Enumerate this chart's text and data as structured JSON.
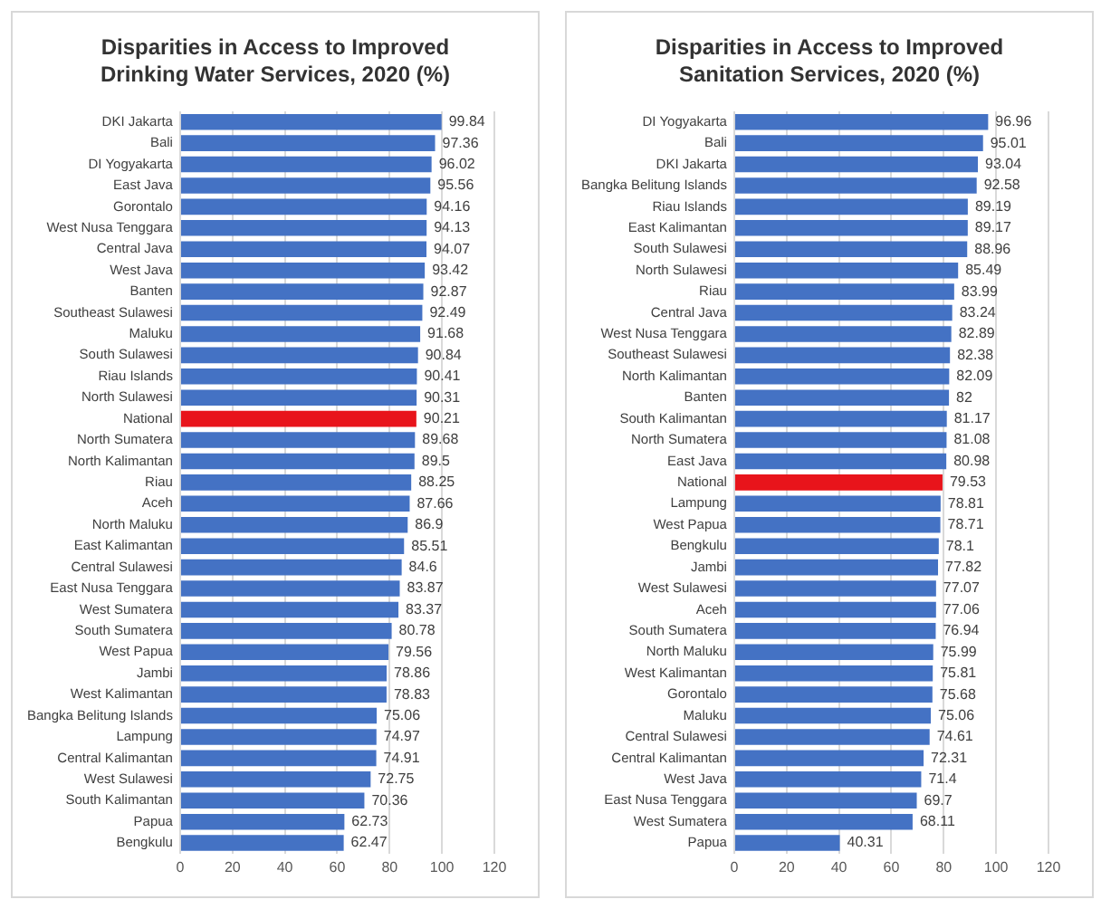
{
  "chart_data": [
    {
      "type": "bar",
      "orientation": "horizontal",
      "title": "Disparities in Access to Improved Drinking Water Services, 2020 (%)",
      "categories": [
        "DKI Jakarta",
        "Bali",
        "DI Yogyakarta",
        "East Java",
        "Gorontalo",
        "West Nusa Tenggara",
        "Central Java",
        "West Java",
        "Banten",
        "Southeast Sulawesi",
        "Maluku",
        "South Sulawesi",
        "Riau Islands",
        "North Sulawesi",
        "National",
        "North Sumatera",
        "North Kalimantan",
        "Riau",
        "Aceh",
        "North Maluku",
        "East Kalimantan",
        "Central Sulawesi",
        "East Nusa Tenggara",
        "West Sumatera",
        "South Sumatera",
        "West Papua",
        "Jambi",
        "West Kalimantan",
        "Bangka Belitung Islands",
        "Lampung",
        "Central Kalimantan",
        "West Sulawesi",
        "South Kalimantan",
        "Papua",
        "Bengkulu"
      ],
      "values": [
        99.84,
        97.36,
        96.02,
        95.56,
        94.16,
        94.13,
        94.07,
        93.42,
        92.87,
        92.49,
        91.68,
        90.84,
        90.41,
        90.31,
        90.21,
        89.68,
        89.5,
        88.25,
        87.66,
        86.9,
        85.51,
        84.6,
        83.87,
        83.37,
        80.78,
        79.56,
        78.86,
        78.83,
        75.06,
        74.97,
        74.91,
        72.75,
        70.36,
        62.73,
        62.47
      ],
      "colors": [
        "#4472c4",
        "#4472c4",
        "#4472c4",
        "#4472c4",
        "#4472c4",
        "#4472c4",
        "#4472c4",
        "#4472c4",
        "#4472c4",
        "#4472c4",
        "#4472c4",
        "#4472c4",
        "#4472c4",
        "#4472c4",
        "#e8141b",
        "#4472c4",
        "#4472c4",
        "#4472c4",
        "#4472c4",
        "#4472c4",
        "#4472c4",
        "#4472c4",
        "#4472c4",
        "#4472c4",
        "#4472c4",
        "#4472c4",
        "#4472c4",
        "#4472c4",
        "#4472c4",
        "#4472c4",
        "#4472c4",
        "#4472c4",
        "#4472c4",
        "#4472c4",
        "#4472c4"
      ],
      "xlim": [
        0,
        120
      ],
      "xticks": [
        0,
        20,
        40,
        60,
        80,
        100,
        120
      ],
      "grid": "x",
      "data_labels": true
    },
    {
      "type": "bar",
      "orientation": "horizontal",
      "title": "Disparities in Access to Improved Sanitation Services, 2020 (%)",
      "categories": [
        "DI Yogyakarta",
        "Bali",
        "DKI Jakarta",
        "Bangka Belitung Islands",
        "Riau Islands",
        "East Kalimantan",
        "South Sulawesi",
        "North Sulawesi",
        "Riau",
        "Central Java",
        "West Nusa Tenggara",
        "Southeast Sulawesi",
        "North Kalimantan",
        "Banten",
        "South Kalimantan",
        "North Sumatera",
        "East Java",
        "National",
        "Lampung",
        "West Papua",
        "Bengkulu",
        "Jambi",
        "West Sulawesi",
        "Aceh",
        "South Sumatera",
        "North Maluku",
        "West Kalimantan",
        "Gorontalo",
        "Maluku",
        "Central Sulawesi",
        "Central Kalimantan",
        "West Java",
        "East Nusa Tenggara",
        "West Sumatera",
        "Papua"
      ],
      "values": [
        96.96,
        95.01,
        93.04,
        92.58,
        89.19,
        89.17,
        88.96,
        85.49,
        83.99,
        83.24,
        82.89,
        82.38,
        82.09,
        82,
        81.17,
        81.08,
        80.98,
        79.53,
        78.81,
        78.71,
        78.1,
        77.82,
        77.07,
        77.06,
        76.94,
        75.99,
        75.81,
        75.68,
        75.06,
        74.61,
        72.31,
        71.4,
        69.7,
        68.11,
        40.31
      ],
      "colors": [
        "#4472c4",
        "#4472c4",
        "#4472c4",
        "#4472c4",
        "#4472c4",
        "#4472c4",
        "#4472c4",
        "#4472c4",
        "#4472c4",
        "#4472c4",
        "#4472c4",
        "#4472c4",
        "#4472c4",
        "#4472c4",
        "#4472c4",
        "#4472c4",
        "#4472c4",
        "#e8141b",
        "#4472c4",
        "#4472c4",
        "#4472c4",
        "#4472c4",
        "#4472c4",
        "#4472c4",
        "#4472c4",
        "#4472c4",
        "#4472c4",
        "#4472c4",
        "#4472c4",
        "#4472c4",
        "#4472c4",
        "#4472c4",
        "#4472c4",
        "#4472c4",
        "#4472c4"
      ],
      "xlim": [
        0,
        120
      ],
      "xticks": [
        0,
        20,
        40,
        60,
        80,
        100,
        120
      ],
      "grid": "x",
      "data_labels": true
    }
  ]
}
